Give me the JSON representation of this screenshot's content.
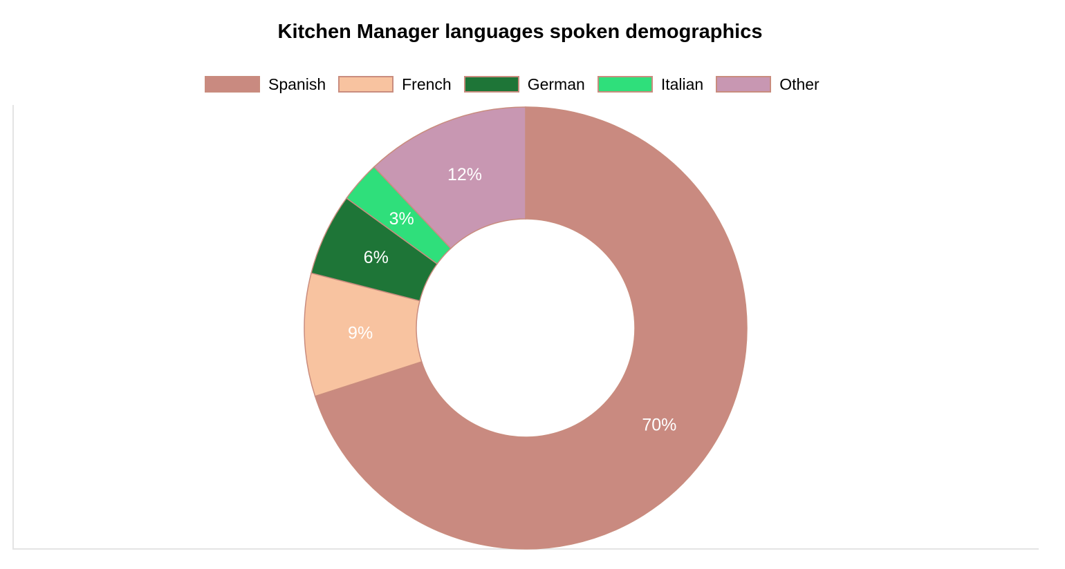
{
  "chart_data": {
    "type": "pie",
    "variant": "donut",
    "title": "Kitchen Manager languages spoken demographics",
    "legend_position": "top",
    "categories": [
      "Spanish",
      "French",
      "German",
      "Italian",
      "Other"
    ],
    "values": [
      70,
      9,
      6,
      3,
      12
    ],
    "value_labels": [
      "70%",
      "9%",
      "6%",
      "3%",
      "12%"
    ],
    "colors": [
      "#c98a80",
      "#f8c3a0",
      "#1e7537",
      "#2fdf7b",
      "#c897b2"
    ],
    "slice_border_color": "#c98c7e"
  }
}
